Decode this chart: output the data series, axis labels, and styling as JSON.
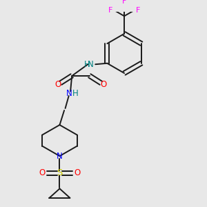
{
  "background_color": "#e8e8e8",
  "bond_color": "#1a1a1a",
  "colors": {
    "N": "#0000FF",
    "N_nh": "#008080",
    "O": "#FF0000",
    "F": "#FF00FF",
    "S": "#cccc00",
    "C": "#1a1a1a"
  },
  "figsize": [
    3.0,
    3.0
  ],
  "dpi": 100
}
